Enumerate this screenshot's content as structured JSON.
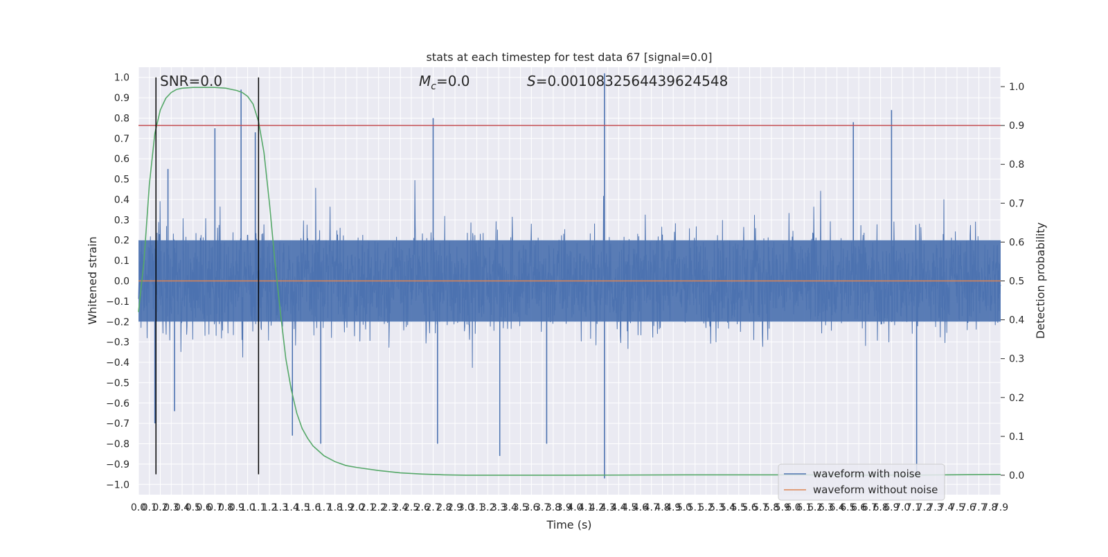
{
  "chart_data": {
    "type": "line",
    "title": "stats at each timestep for test data 67 [signal=0.0]",
    "xlabel": "Time (s)",
    "ylabel_left": "Whitened strain",
    "ylabel_right": "Detection probability",
    "xlim": [
      0.0,
      7.9
    ],
    "ylim_left": [
      -1.05,
      1.05
    ],
    "ylim_right": [
      -0.05,
      1.05
    ],
    "grid": true,
    "x_ticks": [
      "0.0",
      "0.1",
      "0.2",
      "0.3",
      "0.4",
      "0.5",
      "0.6",
      "0.7",
      "0.8",
      "0.9",
      "1.0",
      "1.1",
      "1.2",
      "1.3",
      "1.4",
      "1.5",
      "1.6",
      "1.7",
      "1.8",
      "1.9",
      "2.0",
      "2.1",
      "2.2",
      "2.3",
      "2.4",
      "2.5",
      "2.6",
      "2.7",
      "2.8",
      "2.9",
      "3.0",
      "3.1",
      "3.2",
      "3.3",
      "3.4",
      "3.5",
      "3.6",
      "3.7",
      "3.8",
      "3.9",
      "4.0",
      "4.1",
      "4.2",
      "4.3",
      "4.4",
      "4.5",
      "4.6",
      "4.7",
      "4.8",
      "4.9",
      "5.0",
      "5.1",
      "5.2",
      "5.3",
      "5.4",
      "5.5",
      "5.6",
      "5.7",
      "5.8",
      "5.9",
      "6.0",
      "6.1",
      "6.2",
      "6.3",
      "6.4",
      "6.5",
      "6.6",
      "6.7",
      "6.8",
      "6.9",
      "7.0",
      "7.1",
      "7.2",
      "7.3",
      "7.4",
      "7.5",
      "7.6",
      "7.7",
      "7.8",
      "7.9"
    ],
    "y_ticks_left": [
      "1.0",
      "0.9",
      "0.8",
      "0.7",
      "0.6",
      "0.5",
      "0.4",
      "0.3",
      "0.2",
      "0.1",
      "0.0",
      "−0.1",
      "−0.2",
      "−0.3",
      "−0.4",
      "−0.5",
      "−0.6",
      "−0.7",
      "−0.8",
      "−0.9",
      "−1.0"
    ],
    "y_ticks_right": [
      "1.0",
      "0.9",
      "0.8",
      "0.7",
      "0.6",
      "0.5",
      "0.4",
      "0.3",
      "0.2",
      "0.1",
      "0.0"
    ],
    "annotations": {
      "snr": "SNR=0.0",
      "mc_symbol": "M",
      "mc_sub": "c",
      "mc_value": "=0.0",
      "s_symbol": "S",
      "s_value": "=0.0010832564439624548"
    },
    "legend": {
      "placement": "lower-right",
      "entries": [
        {
          "label": "waveform with noise",
          "color": "#4c72b0"
        },
        {
          "label": "waveform without noise",
          "color": "#dd8452"
        }
      ]
    },
    "threshold": {
      "axis": "right",
      "value": 0.9,
      "color": "#c44e52"
    },
    "vertical_markers": {
      "x": [
        0.16,
        1.1
      ],
      "color": "#000000"
    },
    "series": [
      {
        "name": "waveform with noise",
        "axis": "left",
        "color": "#4c72b0",
        "noise_band_half_width": 0.22,
        "spikes": [
          {
            "x": 0.15,
            "y": -0.7
          },
          {
            "x": 0.27,
            "y": 0.55
          },
          {
            "x": 0.33,
            "y": -0.64
          },
          {
            "x": 0.7,
            "y": 0.75
          },
          {
            "x": 0.94,
            "y": 0.94
          },
          {
            "x": 1.07,
            "y": 0.73
          },
          {
            "x": 1.41,
            "y": -0.76
          },
          {
            "x": 1.67,
            "y": -0.8
          },
          {
            "x": 2.7,
            "y": 0.8
          },
          {
            "x": 2.74,
            "y": -0.8
          },
          {
            "x": 3.31,
            "y": -0.86
          },
          {
            "x": 3.74,
            "y": -0.8
          },
          {
            "x": 4.27,
            "y": 1.02
          },
          {
            "x": 4.27,
            "y": -0.97
          },
          {
            "x": 6.55,
            "y": 0.78
          },
          {
            "x": 6.9,
            "y": 0.84
          },
          {
            "x": 7.13,
            "y": -0.95
          }
        ]
      },
      {
        "name": "waveform without noise",
        "axis": "left",
        "color": "#dd8452",
        "x": [
          0.0,
          7.9
        ],
        "y": [
          0.0,
          0.0
        ]
      },
      {
        "name": "detection probability",
        "axis": "right",
        "color": "#55a868",
        "x": [
          0.0,
          0.05,
          0.1,
          0.15,
          0.2,
          0.25,
          0.3,
          0.35,
          0.4,
          0.5,
          0.6,
          0.7,
          0.8,
          0.9,
          0.95,
          1.0,
          1.05,
          1.1,
          1.15,
          1.2,
          1.25,
          1.3,
          1.35,
          1.4,
          1.45,
          1.5,
          1.55,
          1.6,
          1.7,
          1.8,
          1.9,
          2.0,
          2.2,
          2.4,
          2.6,
          2.8,
          3.0,
          4.0,
          5.0,
          6.0,
          7.0,
          7.9
        ],
        "y": [
          0.42,
          0.55,
          0.75,
          0.88,
          0.94,
          0.97,
          0.985,
          0.993,
          0.996,
          0.998,
          0.998,
          0.998,
          0.996,
          0.99,
          0.985,
          0.975,
          0.955,
          0.91,
          0.83,
          0.7,
          0.55,
          0.42,
          0.3,
          0.22,
          0.16,
          0.12,
          0.095,
          0.075,
          0.05,
          0.035,
          0.025,
          0.02,
          0.012,
          0.006,
          0.003,
          0.001,
          0.0,
          0.0,
          0.001,
          0.001,
          0.0,
          0.002
        ]
      }
    ]
  }
}
